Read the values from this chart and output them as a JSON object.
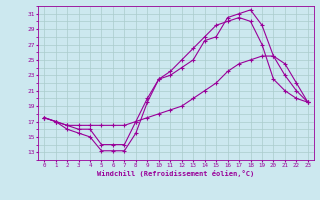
{
  "xlabel": "Windchill (Refroidissement éolien,°C)",
  "xlim": [
    -0.5,
    23.5
  ],
  "ylim": [
    12,
    32
  ],
  "xticks": [
    0,
    1,
    2,
    3,
    4,
    5,
    6,
    7,
    8,
    9,
    10,
    11,
    12,
    13,
    14,
    15,
    16,
    17,
    18,
    19,
    20,
    21,
    22,
    23
  ],
  "yticks": [
    13,
    15,
    17,
    19,
    21,
    23,
    25,
    27,
    29,
    31
  ],
  "background_color": "#cce8ef",
  "grid_color": "#aacccc",
  "line_color": "#990099",
  "line1_x": [
    0,
    1,
    2,
    3,
    4,
    5,
    6,
    7,
    8,
    9,
    10,
    11,
    12,
    13,
    14,
    15,
    16,
    17,
    18,
    19,
    20,
    21,
    22,
    23
  ],
  "line1_y": [
    17.5,
    17.0,
    16.0,
    15.5,
    15.0,
    13.2,
    13.2,
    13.2,
    15.5,
    19.5,
    22.5,
    23.0,
    24.0,
    25.0,
    27.5,
    28.0,
    30.5,
    31.0,
    31.5,
    29.5,
    25.5,
    23.0,
    21.0,
    19.5
  ],
  "line2_x": [
    0,
    1,
    2,
    3,
    4,
    5,
    6,
    7,
    8,
    9,
    10,
    11,
    12,
    13,
    14,
    15,
    16,
    17,
    18,
    19,
    20,
    21,
    22,
    23
  ],
  "line2_y": [
    17.5,
    17.0,
    16.5,
    16.0,
    16.0,
    14.0,
    14.0,
    14.0,
    17.0,
    20.0,
    22.5,
    23.5,
    25.0,
    26.5,
    28.0,
    29.5,
    30.0,
    30.5,
    30.0,
    27.0,
    22.5,
    21.0,
    20.0,
    19.5
  ],
  "line3_x": [
    0,
    1,
    2,
    3,
    4,
    5,
    6,
    7,
    8,
    9,
    10,
    11,
    12,
    13,
    14,
    15,
    16,
    17,
    18,
    19,
    20,
    21,
    22,
    23
  ],
  "line3_y": [
    17.5,
    17.0,
    16.5,
    16.5,
    16.5,
    16.5,
    16.5,
    16.5,
    17.0,
    17.5,
    18.0,
    18.5,
    19.0,
    20.0,
    21.0,
    22.0,
    23.5,
    24.5,
    25.0,
    25.5,
    25.5,
    24.5,
    22.0,
    19.5
  ]
}
